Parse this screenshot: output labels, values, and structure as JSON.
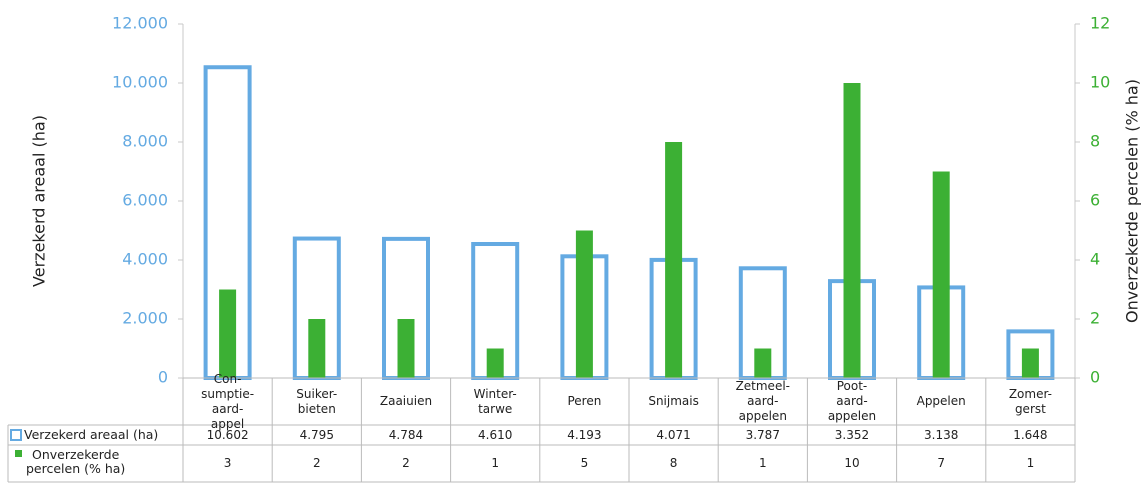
{
  "chart_data": {
    "type": "bar",
    "categories": [
      "Con-\nsumptie-\naard-\nappel",
      "Suiker-\nbieten",
      "Zaaiuien",
      "Winter-\ntarwe",
      "Peren",
      "Snijmais",
      "Zetmeel-\naard-\nappelen",
      "Poot-\naard-\nappelen",
      "Appelen",
      "Zomer-\ngerst"
    ],
    "series": [
      {
        "name": "Verzekerd areaal (ha)",
        "color": "#64aae2",
        "style": "outline",
        "values": [
          10602,
          4795,
          4784,
          4610,
          4193,
          4071,
          3787,
          3352,
          3138,
          1648
        ],
        "value_labels": [
          "10.602",
          "4.795",
          "4.784",
          "4.610",
          "4.193",
          "4.071",
          "3.787",
          "3.352",
          "3.138",
          "1.648"
        ]
      },
      {
        "name": "Onverzekerde percelen (% ha)",
        "color": "#3cb034",
        "style": "filled",
        "axis": "y2",
        "values": [
          3,
          2,
          2,
          1,
          5,
          8,
          1,
          10,
          7,
          1
        ]
      }
    ],
    "y_label": "Verzekerd areaal (ha)",
    "y2_label": "Onverzekerde percelen (% ha)",
    "ylim": [
      0,
      12000
    ],
    "yticks": [
      0,
      {
        "value": 2000,
        "label": "2.000"
      },
      {
        "value": 4000,
        "label": "4.000"
      },
      {
        "value": 6000,
        "label": "6.000"
      },
      {
        "value": 8000,
        "label": "8.000"
      },
      {
        "value": 10000,
        "label": "10.000"
      },
      {
        "value": 12000,
        "label": "12.000"
      }
    ],
    "y2lim": [
      0,
      12
    ],
    "y2ticks": [
      0,
      2,
      4,
      6,
      8,
      10,
      12
    ],
    "grid": false,
    "data_table": true
  }
}
